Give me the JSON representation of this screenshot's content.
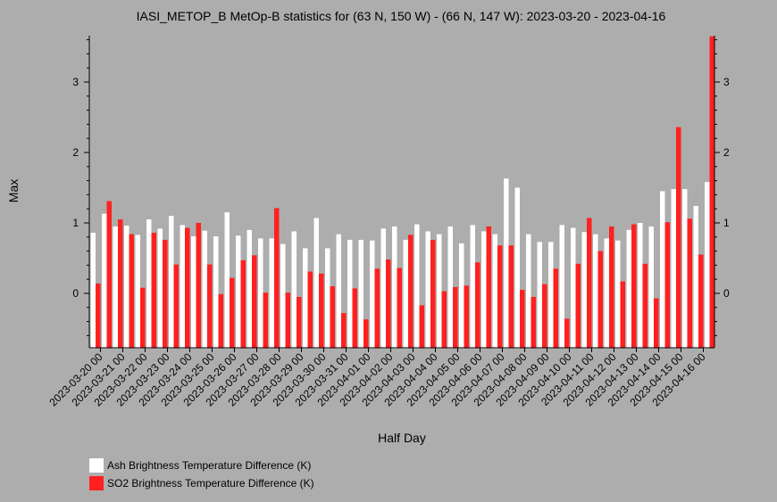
{
  "chart_data": {
    "type": "bar",
    "title": "IASI_METOP_B MetOp-B statistics for (63 N, 150 W) - (66 N, 147 W): 2023-03-20 - 2023-04-16",
    "xlabel": "Half Day",
    "ylabel": "Max",
    "ylim": [
      -0.78,
      3.65
    ],
    "yticks": [
      0,
      1,
      2,
      3
    ],
    "categories": [
      "2023-03-20 00",
      "2023-03-20 12",
      "2023-03-21 00",
      "2023-03-21 12",
      "2023-03-22 00",
      "2023-03-22 12",
      "2023-03-23 00",
      "2023-03-23 12",
      "2023-03-24 00",
      "2023-03-24 12",
      "2023-03-25 00",
      "2023-03-25 12",
      "2023-03-26 00",
      "2023-03-26 12",
      "2023-03-27 00",
      "2023-03-27 12",
      "2023-03-28 00",
      "2023-03-28 12",
      "2023-03-29 00",
      "2023-03-29 12",
      "2023-03-30 00",
      "2023-03-30 12",
      "2023-03-31 00",
      "2023-03-31 12",
      "2023-04-01 00",
      "2023-04-01 12",
      "2023-04-02 00",
      "2023-04-02 12",
      "2023-04-03 00",
      "2023-04-03 12",
      "2023-04-04 00",
      "2023-04-04 12",
      "2023-04-05 00",
      "2023-04-05 12",
      "2023-04-06 00",
      "2023-04-06 12",
      "2023-04-07 00",
      "2023-04-07 12",
      "2023-04-08 00",
      "2023-04-08 12",
      "2023-04-09 00",
      "2023-04-09 12",
      "2023-04-10 00",
      "2023-04-10 12",
      "2023-04-11 00",
      "2023-04-11 12",
      "2023-04-12 00",
      "2023-04-12 12",
      "2023-04-13 00",
      "2023-04-13 12",
      "2023-04-14 00",
      "2023-04-14 12",
      "2023-04-15 00",
      "2023-04-15 12",
      "2023-04-16 00",
      "2023-04-16 12"
    ],
    "xtick_labels": [
      "2023-03-20 00",
      "2023-03-21 00",
      "2023-03-22 00",
      "2023-03-23 00",
      "2023-03-24 00",
      "2023-03-25 00",
      "2023-03-26 00",
      "2023-03-27 00",
      "2023-03-28 00",
      "2023-03-29 00",
      "2023-03-30 00",
      "2023-03-31 00",
      "2023-04-01 00",
      "2023-04-02 00",
      "2023-04-03 00",
      "2023-04-04 00",
      "2023-04-05 00",
      "2023-04-06 00",
      "2023-04-07 00",
      "2023-04-08 00",
      "2023-04-09 00",
      "2023-04-10 00",
      "2023-04-11 00",
      "2023-04-12 00",
      "2023-04-13 00",
      "2023-04-14 00",
      "2023-04-15 00",
      "2023-04-16 00"
    ],
    "series": [
      {
        "name": "Ash Brightness Temperature Difference (K)",
        "color": "#ffffff",
        "values": [
          0.86,
          1.13,
          0.95,
          0.96,
          0.83,
          1.05,
          0.92,
          1.1,
          0.97,
          0.81,
          0.89,
          0.81,
          1.15,
          0.82,
          0.9,
          0.78,
          0.78,
          0.7,
          0.88,
          0.64,
          1.07,
          0.64,
          0.84,
          0.76,
          0.76,
          0.75,
          0.92,
          0.95,
          0.76,
          0.98,
          0.88,
          0.84,
          0.95,
          0.71,
          0.97,
          0.88,
          0.84,
          1.63,
          1.5,
          0.84,
          0.73,
          0.73,
          0.97,
          0.93,
          0.87,
          0.84,
          0.78,
          0.75,
          0.9,
          1.0,
          0.95,
          1.45,
          1.48,
          1.48,
          1.24,
          1.58
        ]
      },
      {
        "name": "SO2 Brightness Temperature Difference (K)",
        "color": "#ff2020",
        "values": [
          0.14,
          1.31,
          1.05,
          0.84,
          0.08,
          0.86,
          0.76,
          0.41,
          0.93,
          1.0,
          0.41,
          -0.01,
          0.22,
          0.47,
          0.54,
          0.01,
          1.21,
          0.01,
          -0.05,
          0.31,
          0.28,
          0.1,
          -0.28,
          0.07,
          -0.37,
          0.35,
          0.48,
          0.36,
          0.83,
          -0.17,
          0.76,
          0.03,
          0.09,
          0.11,
          0.44,
          0.95,
          0.68,
          0.68,
          0.05,
          -0.05,
          0.13,
          0.35,
          -0.36,
          0.42,
          1.07,
          0.6,
          0.95,
          0.17,
          0.98,
          0.42,
          -0.07,
          1.01,
          2.36,
          1.06,
          0.55,
          3.65
        ]
      }
    ],
    "legend_position": "bottom-left",
    "grid": false
  }
}
